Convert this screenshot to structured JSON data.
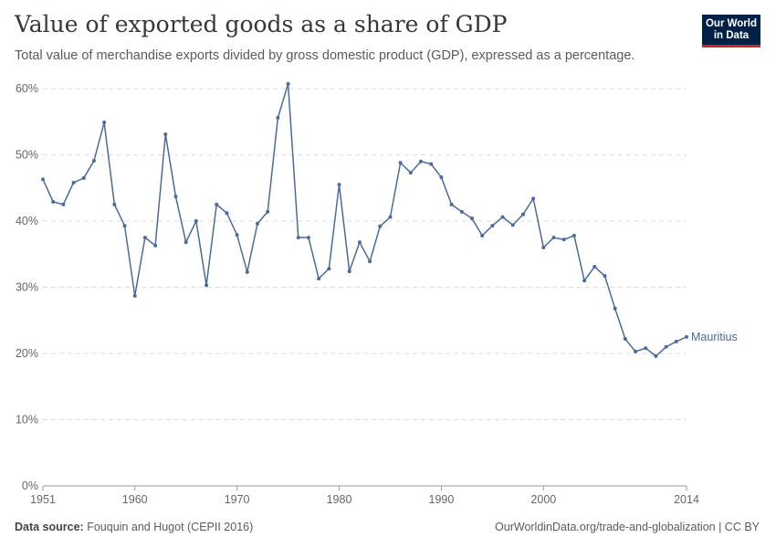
{
  "header": {
    "title": "Value of exported goods as a share of GDP",
    "subtitle": "Total value of merchandise exports divided by gross domestic product (GDP), expressed as a percentage.",
    "logo": "Our World in Data"
  },
  "footer": {
    "source_label": "Data source:",
    "source": "Fouquin and Hugot (CEPII 2016)",
    "link": "OurWorldinData.org/trade-and-globalization | CC BY"
  },
  "chart_data": {
    "type": "line",
    "title": "Value of exported goods as a share of GDP",
    "xlabel": "",
    "ylabel": "",
    "ylim": [
      0,
      60
    ],
    "xlim": [
      1951,
      2014
    ],
    "yticks": [
      "0%",
      "10%",
      "20%",
      "30%",
      "40%",
      "50%",
      "60%"
    ],
    "xticks": [
      "1951",
      "1960",
      "1970",
      "1980",
      "1990",
      "2000",
      "2014"
    ],
    "grid": true,
    "color": "#4c6a9c",
    "series": [
      {
        "name": "Mauritius",
        "x": [
          1951,
          1952,
          1953,
          1954,
          1955,
          1956,
          1957,
          1958,
          1959,
          1960,
          1961,
          1962,
          1963,
          1964,
          1965,
          1966,
          1967,
          1968,
          1969,
          1970,
          1971,
          1972,
          1973,
          1974,
          1975,
          1976,
          1977,
          1978,
          1979,
          1980,
          1981,
          1982,
          1983,
          1984,
          1985,
          1986,
          1987,
          1988,
          1989,
          1990,
          1991,
          1992,
          1993,
          1994,
          1995,
          1996,
          1997,
          1998,
          1999,
          2000,
          2001,
          2002,
          2003,
          2004,
          2005,
          2006,
          2007,
          2008,
          2009,
          2010,
          2011,
          2012,
          2013,
          2014
        ],
        "values": [
          46.3,
          42.9,
          42.5,
          45.8,
          46.5,
          49.1,
          54.9,
          42.5,
          39.3,
          28.7,
          37.5,
          36.3,
          53.1,
          43.7,
          36.8,
          40.0,
          30.3,
          42.5,
          41.2,
          37.9,
          32.3,
          39.6,
          41.4,
          55.6,
          60.7,
          37.5,
          37.5,
          31.3,
          32.8,
          45.5,
          32.4,
          36.8,
          33.9,
          39.2,
          40.6,
          48.8,
          47.3,
          49.0,
          48.6,
          46.6,
          42.5,
          41.4,
          40.4,
          37.8,
          39.3,
          40.6,
          39.4,
          41.0,
          43.4,
          36.0,
          37.5,
          37.2,
          37.8,
          31.0,
          33.1,
          31.7,
          26.8,
          22.2,
          20.3,
          20.8,
          19.6,
          21.0,
          21.8,
          22.5
        ]
      }
    ]
  }
}
